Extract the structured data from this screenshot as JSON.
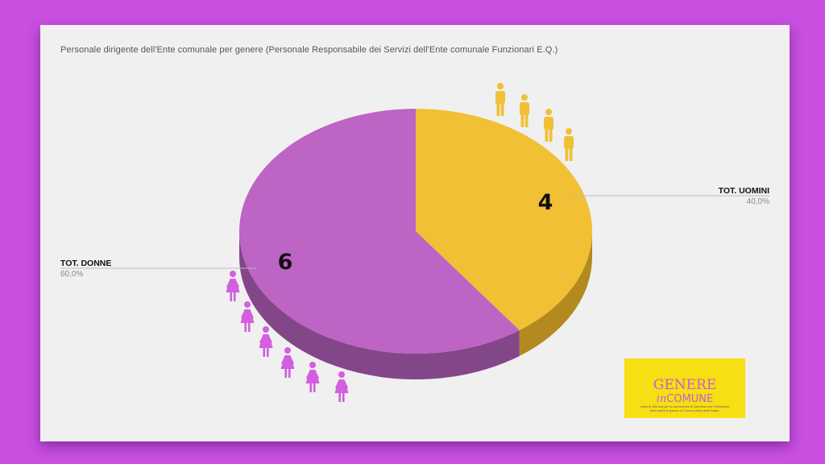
{
  "chart_data": {
    "type": "pie",
    "title": "Personale dirigente dell'Ente comunale per genere (Personale Responsabile dei Servizi dell'Ente comunale Funzionari E.Q.)",
    "slices": [
      {
        "label": "TOT. UOMINI",
        "value": 4,
        "percent_label": "40,0%",
        "color": "#f1c034",
        "side_color": "#b28a1f"
      },
      {
        "label": "TOT. DONNE",
        "value": 6,
        "percent_label": "60,0%",
        "color": "#bd64c4",
        "side_color": "#834688"
      }
    ],
    "legend": "none",
    "style": "3d-pie"
  },
  "icons": {
    "men": {
      "name": "man-icon",
      "count": 4,
      "color": "#f1c034"
    },
    "women": {
      "name": "woman-icon",
      "count": 6,
      "color": "#d25fe0"
    }
  },
  "logo": {
    "line1": "GENERE",
    "line2a": "in",
    "line2b": "COMUNE",
    "tagline": [
      "Linee di indirizzo per la concessione di contributi per l'attuazione",
      "della parità di genere in Comuni pilota della Puglia."
    ],
    "background": "#f6df12"
  },
  "colors": {
    "page_background": "#c84fe0",
    "slide_background": "#f0f0f0"
  }
}
